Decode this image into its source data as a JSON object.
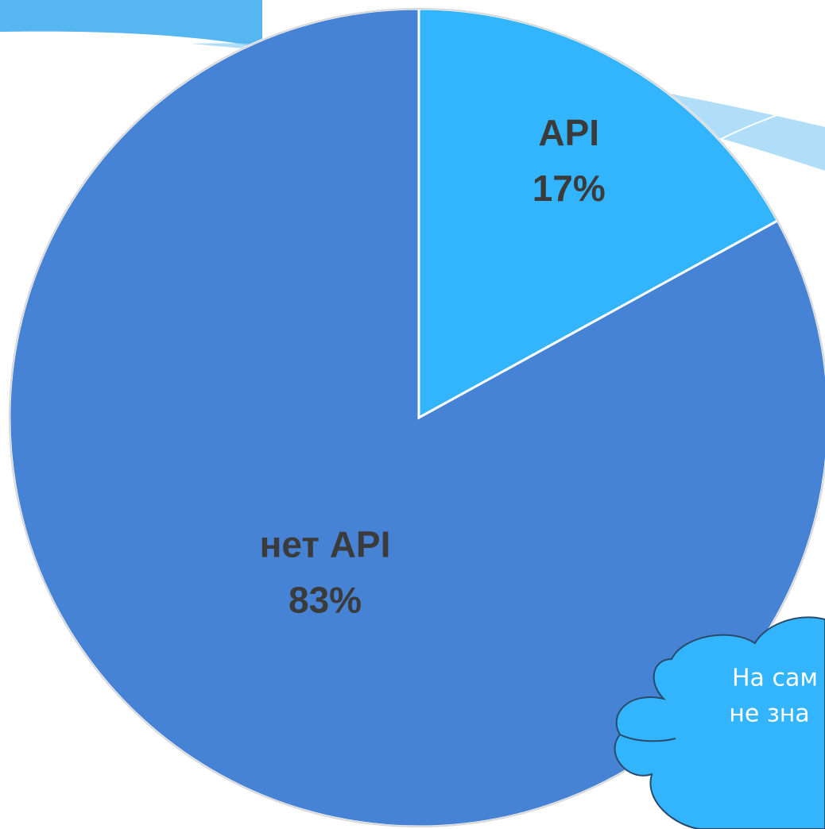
{
  "chart_data": {
    "type": "pie",
    "categories": [
      "API",
      "нет API"
    ],
    "values": [
      17,
      83
    ],
    "value_labels": [
      "17%",
      "83%"
    ],
    "colors": [
      "#33b5fd",
      "#4683d5"
    ],
    "start_angle": 90,
    "direction": "clockwise",
    "annotations": [
      "На сам",
      "не зна"
    ]
  }
}
